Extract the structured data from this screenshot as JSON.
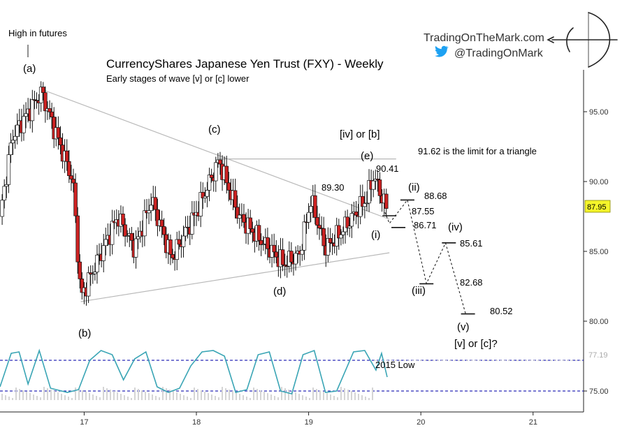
{
  "title": "CurrencyShares Japanese Yen Trust (FXY) - Weekly",
  "subtitle": "Early stages of wave [v] or [c] lower",
  "top_note": "High in futures",
  "branding": {
    "site": "TradingOnTheMark.com",
    "twitter": "@TradingOnMark",
    "twitter_icon": "twitter-bird-icon",
    "logo_icon": "archer-bow-icon"
  },
  "current_price_label": "87.95",
  "dashed_level_label": "77.19",
  "note_2015_low": "2015 Low",
  "triangle_limit_note": "91.62 is the limit for a triangle",
  "wave_labels": {
    "a": "(a)",
    "b": "(b)",
    "c": "(c)",
    "d": "(d)",
    "e": "(e)",
    "iv_or_b": "[iv] or [b]",
    "i": "(i)",
    "ii": "(ii)",
    "iii": "(iii)",
    "iv": "(iv)",
    "v": "(v)",
    "v_or_c": "[v] or [c]?"
  },
  "price_labels": {
    "p9041": "90.41",
    "p8930": "89.30",
    "p8868": "88.68",
    "p8755": "87.55",
    "p8671": "86.71",
    "p8561": "85.61",
    "p8268": "82.68",
    "p8052": "80.52"
  },
  "colors": {
    "up_candle": "#ffffff",
    "down_candle": "#cc2222",
    "oscillator": "#3aa5b5",
    "oscillator_bands": "#2a2ab8",
    "trendline": "#b8b8b8",
    "price_box": "#f5f52a"
  },
  "chart_data": {
    "type": "candlestick",
    "title": "CurrencyShares Japanese Yen Trust (FXY) - Weekly",
    "x_ticks": [
      "17",
      "18",
      "19",
      "20",
      "21"
    ],
    "y_ticks": [
      "95.00",
      "90.00",
      "85.00",
      "80.00",
      "75.00"
    ],
    "ylim": [
      73.5,
      98
    ],
    "xlim": [
      16.25,
      21.45
    ],
    "grid": false,
    "last_price": 87.95,
    "swings": [
      {
        "t": 16.25,
        "p": 87.5
      },
      {
        "t": 16.36,
        "p": 93.2
      },
      {
        "t": 16.62,
        "p": 96.4
      },
      {
        "t": 16.9,
        "p": 90.0
      },
      {
        "t": 16.97,
        "p": 81.7
      },
      {
        "t": 17.3,
        "p": 87.5
      },
      {
        "t": 17.45,
        "p": 85.2
      },
      {
        "t": 17.6,
        "p": 88.7
      },
      {
        "t": 17.78,
        "p": 84.5
      },
      {
        "t": 18.0,
        "p": 87.8
      },
      {
        "t": 18.2,
        "p": 91.5
      },
      {
        "t": 18.38,
        "p": 87.5
      },
      {
        "t": 18.55,
        "p": 86.0
      },
      {
        "t": 18.78,
        "p": 84.1
      },
      {
        "t": 18.92,
        "p": 84.8
      },
      {
        "t": 19.02,
        "p": 88.7
      },
      {
        "t": 19.15,
        "p": 85.2
      },
      {
        "t": 19.28,
        "p": 86.3
      },
      {
        "t": 19.52,
        "p": 88.8
      },
      {
        "t": 19.58,
        "p": 90.4
      },
      {
        "t": 19.7,
        "p": 87.95
      }
    ],
    "trendlines": [
      {
        "from": {
          "t": 16.62,
          "p": 96.6
        },
        "to": {
          "t": 19.72,
          "p": 87.3
        }
      },
      {
        "from": {
          "t": 16.97,
          "p": 81.4
        },
        "to": {
          "t": 19.72,
          "p": 84.9
        }
      },
      {
        "from": {
          "t": 18.2,
          "p": 91.62
        },
        "to": {
          "t": 19.78,
          "p": 91.62
        }
      }
    ],
    "projection_path": [
      {
        "t": 19.68,
        "p": 87.8
      },
      {
        "t": 19.72,
        "p": 87.0
      },
      {
        "t": 19.88,
        "p": 88.68
      },
      {
        "t": 20.05,
        "p": 82.7
      },
      {
        "t": 20.22,
        "p": 85.6
      },
      {
        "t": 20.4,
        "p": 80.5
      }
    ],
    "projection_levels": [
      {
        "t": 19.72,
        "p": 87.55
      },
      {
        "t": 19.8,
        "p": 86.71
      },
      {
        "t": 19.88,
        "p": 88.68
      },
      {
        "t": 20.05,
        "p": 82.68
      },
      {
        "t": 20.25,
        "p": 85.61
      },
      {
        "t": 20.42,
        "p": 80.52
      }
    ],
    "oscillator": {
      "lower_band": 75.0,
      "upper_band": 77.2,
      "reference_level": 77.19,
      "points": [
        {
          "t": 16.25,
          "v": 75.3
        },
        {
          "t": 16.35,
          "v": 77.7
        },
        {
          "t": 16.42,
          "v": 77.8
        },
        {
          "t": 16.5,
          "v": 75.5
        },
        {
          "t": 16.6,
          "v": 77.9
        },
        {
          "t": 16.7,
          "v": 75.2
        },
        {
          "t": 16.85,
          "v": 74.9
        },
        {
          "t": 16.95,
          "v": 75.1
        },
        {
          "t": 17.05,
          "v": 77.2
        },
        {
          "t": 17.15,
          "v": 77.9
        },
        {
          "t": 17.25,
          "v": 77.6
        },
        {
          "t": 17.35,
          "v": 75.8
        },
        {
          "t": 17.45,
          "v": 77.3
        },
        {
          "t": 17.55,
          "v": 77.8
        },
        {
          "t": 17.65,
          "v": 75.3
        },
        {
          "t": 17.75,
          "v": 74.9
        },
        {
          "t": 17.85,
          "v": 75.2
        },
        {
          "t": 17.95,
          "v": 76.8
        },
        {
          "t": 18.05,
          "v": 77.8
        },
        {
          "t": 18.15,
          "v": 77.9
        },
        {
          "t": 18.25,
          "v": 77.5
        },
        {
          "t": 18.35,
          "v": 74.9
        },
        {
          "t": 18.45,
          "v": 75.1
        },
        {
          "t": 18.55,
          "v": 77.6
        },
        {
          "t": 18.65,
          "v": 77.8
        },
        {
          "t": 18.75,
          "v": 75.0
        },
        {
          "t": 18.85,
          "v": 74.8
        },
        {
          "t": 18.95,
          "v": 77.6
        },
        {
          "t": 19.05,
          "v": 77.9
        },
        {
          "t": 19.15,
          "v": 74.9
        },
        {
          "t": 19.25,
          "v": 75.0
        },
        {
          "t": 19.4,
          "v": 77.8
        },
        {
          "t": 19.5,
          "v": 77.9
        },
        {
          "t": 19.6,
          "v": 76.5
        },
        {
          "t": 19.65,
          "v": 77.7
        },
        {
          "t": 19.7,
          "v": 76.0
        }
      ]
    }
  }
}
